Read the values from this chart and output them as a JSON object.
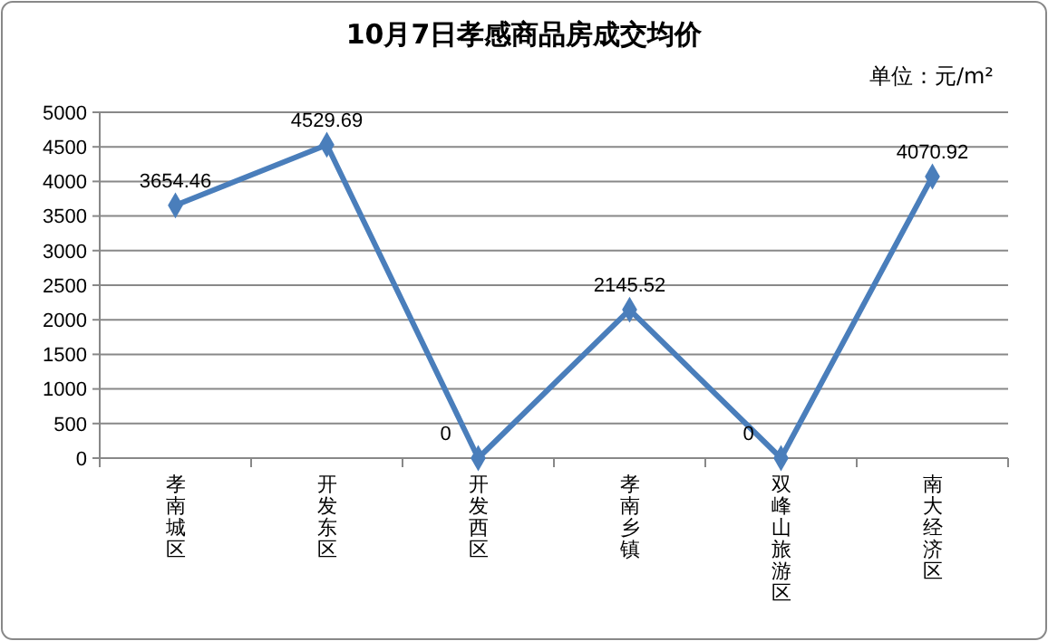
{
  "chart_data": {
    "type": "line",
    "title": "10月7日孝感商品房成交均价",
    "annotations": [
      "单位：元/m²"
    ],
    "categories": [
      "孝南城区",
      "开发东区",
      "开发西区",
      "孝南乡镇",
      "双峰山旅游区",
      "南大经济区"
    ],
    "series": [
      {
        "color": "#4a7ebb",
        "values": [
          3654.46,
          4529.69,
          0,
          2145.52,
          0,
          4070.92
        ]
      }
    ],
    "ylim": [
      0,
      5000
    ],
    "yticks": [
      0,
      500,
      1000,
      1500,
      2000,
      2500,
      3000,
      3500,
      4000,
      4500,
      5000
    ],
    "grid": "y",
    "marker": "diamond",
    "line_style": "solid",
    "data_labels": true
  }
}
